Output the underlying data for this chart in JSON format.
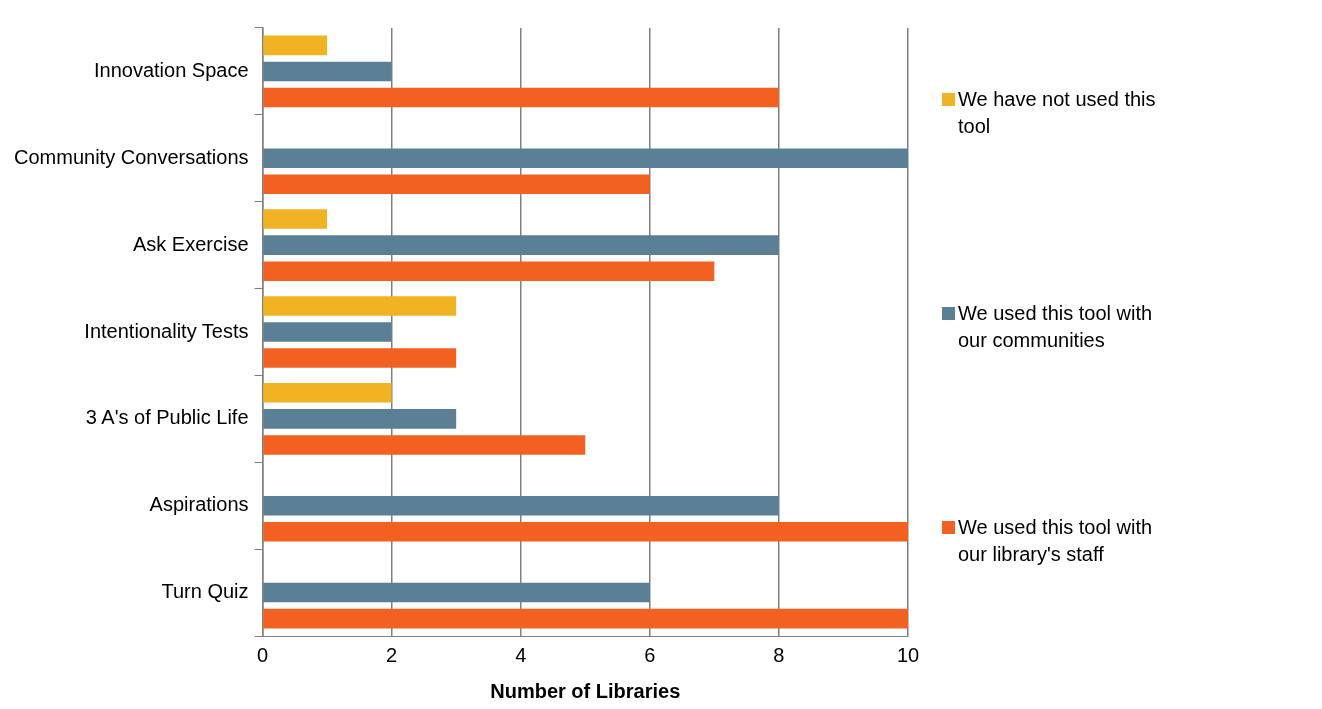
{
  "chart_data": {
    "type": "bar",
    "orientation": "horizontal",
    "xlabel": "Number of Libraries",
    "categories": [
      "Innovation Space",
      "Community Conversations",
      "Ask Exercise",
      "Intentionality Tests",
      "3 A's of Public Life",
      "Aspirations",
      "Turn Quiz"
    ],
    "series": [
      {
        "name": "We have not used this tool",
        "color": "#f0b323",
        "values": [
          1,
          0,
          1,
          3,
          2,
          0,
          0
        ]
      },
      {
        "name": "We used this tool with our communities",
        "color": "#5b7f95",
        "values": [
          2,
          10,
          8,
          2,
          3,
          8,
          6
        ]
      },
      {
        "name": "We used this tool with our library's staff",
        "color": "#f26122",
        "values": [
          8,
          6,
          7,
          3,
          5,
          10,
          10
        ]
      }
    ],
    "xlim": [
      0,
      10
    ],
    "xticks": [
      0,
      2,
      4,
      6,
      8,
      10
    ],
    "grid": "x",
    "legend": "right"
  }
}
